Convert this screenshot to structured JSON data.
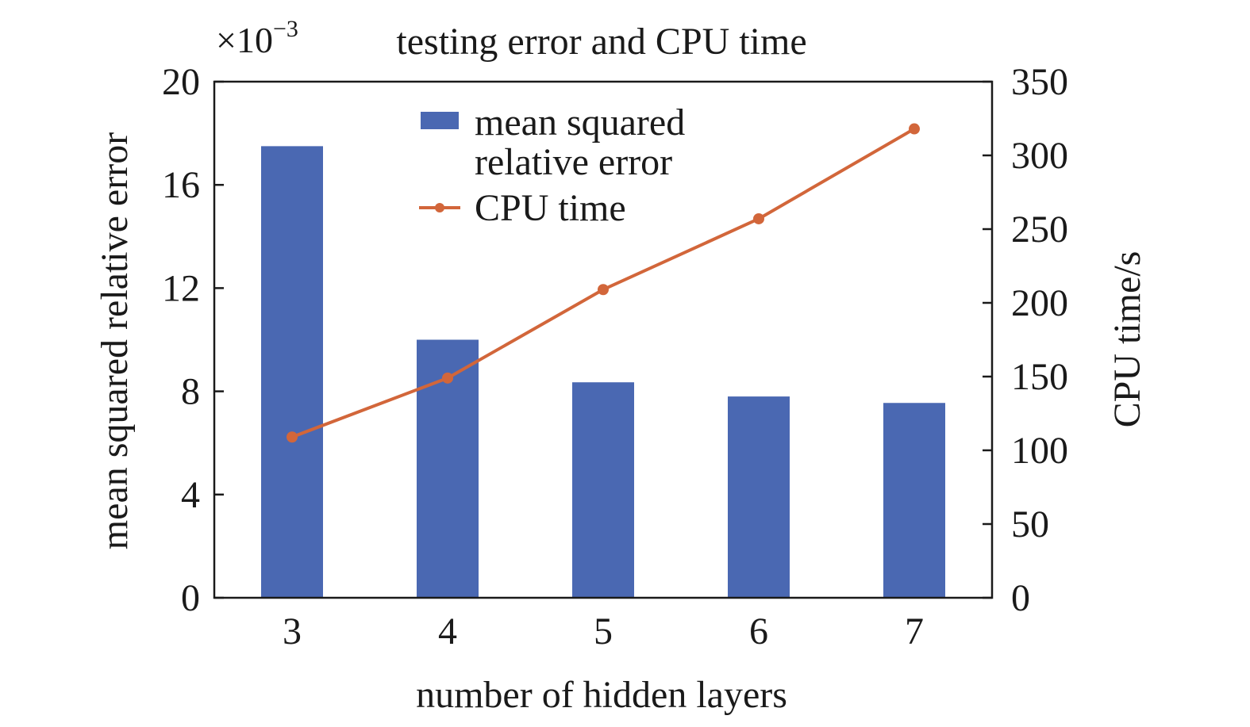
{
  "chart_data": {
    "type": "bar",
    "title": "testing error and CPU time",
    "xlabel": "number of hidden layers",
    "categories": [
      "3",
      "4",
      "5",
      "6",
      "7"
    ],
    "series": [
      {
        "name": "mean squared relative error",
        "legend_lines": [
          "mean squared",
          "relative error"
        ],
        "type": "bar",
        "axis": "left",
        "values": [
          17.5,
          10.0,
          8.35,
          7.8,
          7.55
        ],
        "color": "#4a68b2"
      },
      {
        "name": "CPU time",
        "type": "line",
        "axis": "right",
        "values": [
          109,
          149,
          209,
          257,
          318
        ],
        "color": "#d2663a"
      }
    ],
    "left_axis": {
      "label": "mean squared relative error",
      "scale_prefix": "×10",
      "scale_exponent": "−3",
      "ylim": [
        0,
        20
      ],
      "ticks": [
        0,
        4,
        8,
        12,
        16,
        20
      ]
    },
    "right_axis": {
      "label": "CPU time/s",
      "ylim": [
        0,
        350
      ],
      "ticks": [
        0,
        50,
        100,
        150,
        200,
        250,
        300,
        350
      ]
    },
    "legend_position": "top-center",
    "grid": false
  }
}
